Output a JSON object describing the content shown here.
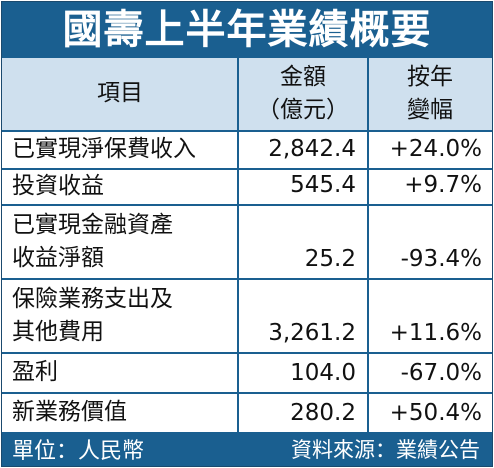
{
  "title": "國壽上半年業績概要",
  "header": {
    "item": "項目",
    "amount_line1": "金額",
    "amount_line2": "（億元）",
    "change_line1": "按年",
    "change_line2": "變幅"
  },
  "rows": [
    {
      "name_line1": "已實現淨保費收入",
      "name_line2": "",
      "amount": "2,842.4",
      "change": "+24.0%"
    },
    {
      "name_line1": "投資收益",
      "name_line2": "",
      "amount": "545.4",
      "change": "+9.7%"
    },
    {
      "name_line1": "已實現金融資產",
      "name_line2": "收益淨額",
      "amount": "25.2",
      "change": "-93.4%"
    },
    {
      "name_line1": "保險業務支出及",
      "name_line2": "其他費用",
      "amount": "3,261.2",
      "change": "+11.6%"
    },
    {
      "name_line1": "盈利",
      "name_line2": "",
      "amount": "104.0",
      "change": "-67.0%"
    },
    {
      "name_line1": "新業務價值",
      "name_line2": "",
      "amount": "280.2",
      "change": "+50.4%"
    }
  ],
  "footer": {
    "unit": "單位：人民幣",
    "source": "資料來源：業績公告"
  },
  "colors": {
    "primary": "#1a5f90",
    "header_bg": "#cfe0ee"
  }
}
